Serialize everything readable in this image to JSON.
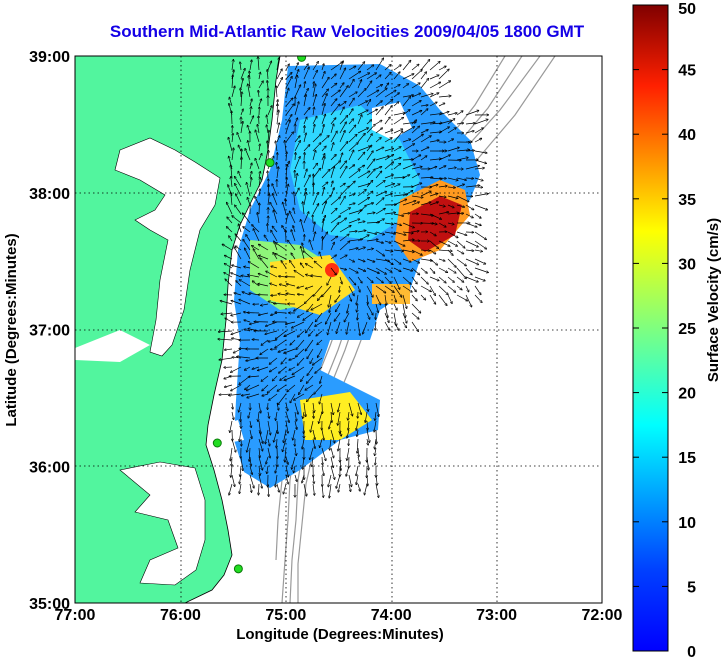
{
  "title": "Southern Mid-Atlantic Raw Velocities 2009/04/05 1800 GMT",
  "xlabel": "Longitude (Degrees:Minutes)",
  "ylabel": "Latitude (Degrees:Minutes)",
  "x_ticks": [
    "77:00",
    "76:00",
    "75:00",
    "74:00",
    "73:00",
    "72:00"
  ],
  "y_ticks": [
    "39:00",
    "38:00",
    "37:00",
    "36:00",
    "35:00"
  ],
  "colorbar": {
    "label": "Surface Velocity (cm/s)",
    "ticks": [
      "0",
      "5",
      "10",
      "15",
      "20",
      "25",
      "30",
      "35",
      "40",
      "45",
      "50"
    ],
    "range": [
      0,
      50
    ]
  },
  "map_extent": {
    "lon": [
      -77,
      -72
    ],
    "lat": [
      35,
      39
    ]
  },
  "colors": {
    "land": "#52f59e",
    "title": "#1400e6",
    "bathymetry": "#9a9a9a",
    "station": "#22dd22"
  },
  "stations": [
    {
      "name": "station-1",
      "lon": -74.85,
      "lat": 38.99
    },
    {
      "name": "station-2",
      "lon": -75.15,
      "lat": 38.22
    },
    {
      "name": "station-3",
      "lon": -75.65,
      "lat": 36.17
    },
    {
      "name": "station-4",
      "lon": -75.45,
      "lat": 35.25
    }
  ]
}
